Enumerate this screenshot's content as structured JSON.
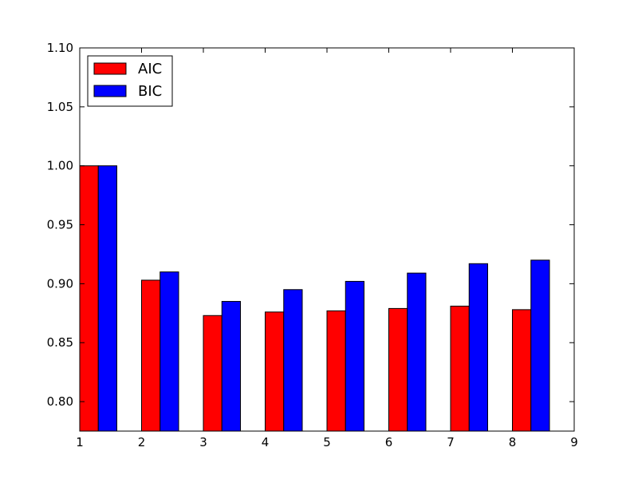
{
  "chart_data": {
    "type": "bar",
    "x": [
      1,
      2,
      3,
      4,
      5,
      6,
      7,
      8
    ],
    "xlim": [
      1,
      9
    ],
    "ylim": [
      0.775,
      1.1
    ],
    "xticks": [
      "1",
      "2",
      "3",
      "4",
      "5",
      "6",
      "7",
      "8",
      "9"
    ],
    "yticks": [
      "0.80",
      "0.85",
      "0.90",
      "0.95",
      "1.00",
      "1.05",
      "1.10"
    ],
    "grid": false,
    "legend_position": "top-left",
    "series": [
      {
        "name": "AIC",
        "color": "#ff0000",
        "values": [
          1.0,
          0.903,
          0.873,
          0.876,
          0.877,
          0.879,
          0.881,
          0.878
        ]
      },
      {
        "name": "BIC",
        "color": "#0000ff",
        "values": [
          1.0,
          0.91,
          0.885,
          0.895,
          0.902,
          0.909,
          0.917,
          0.92
        ]
      }
    ]
  }
}
